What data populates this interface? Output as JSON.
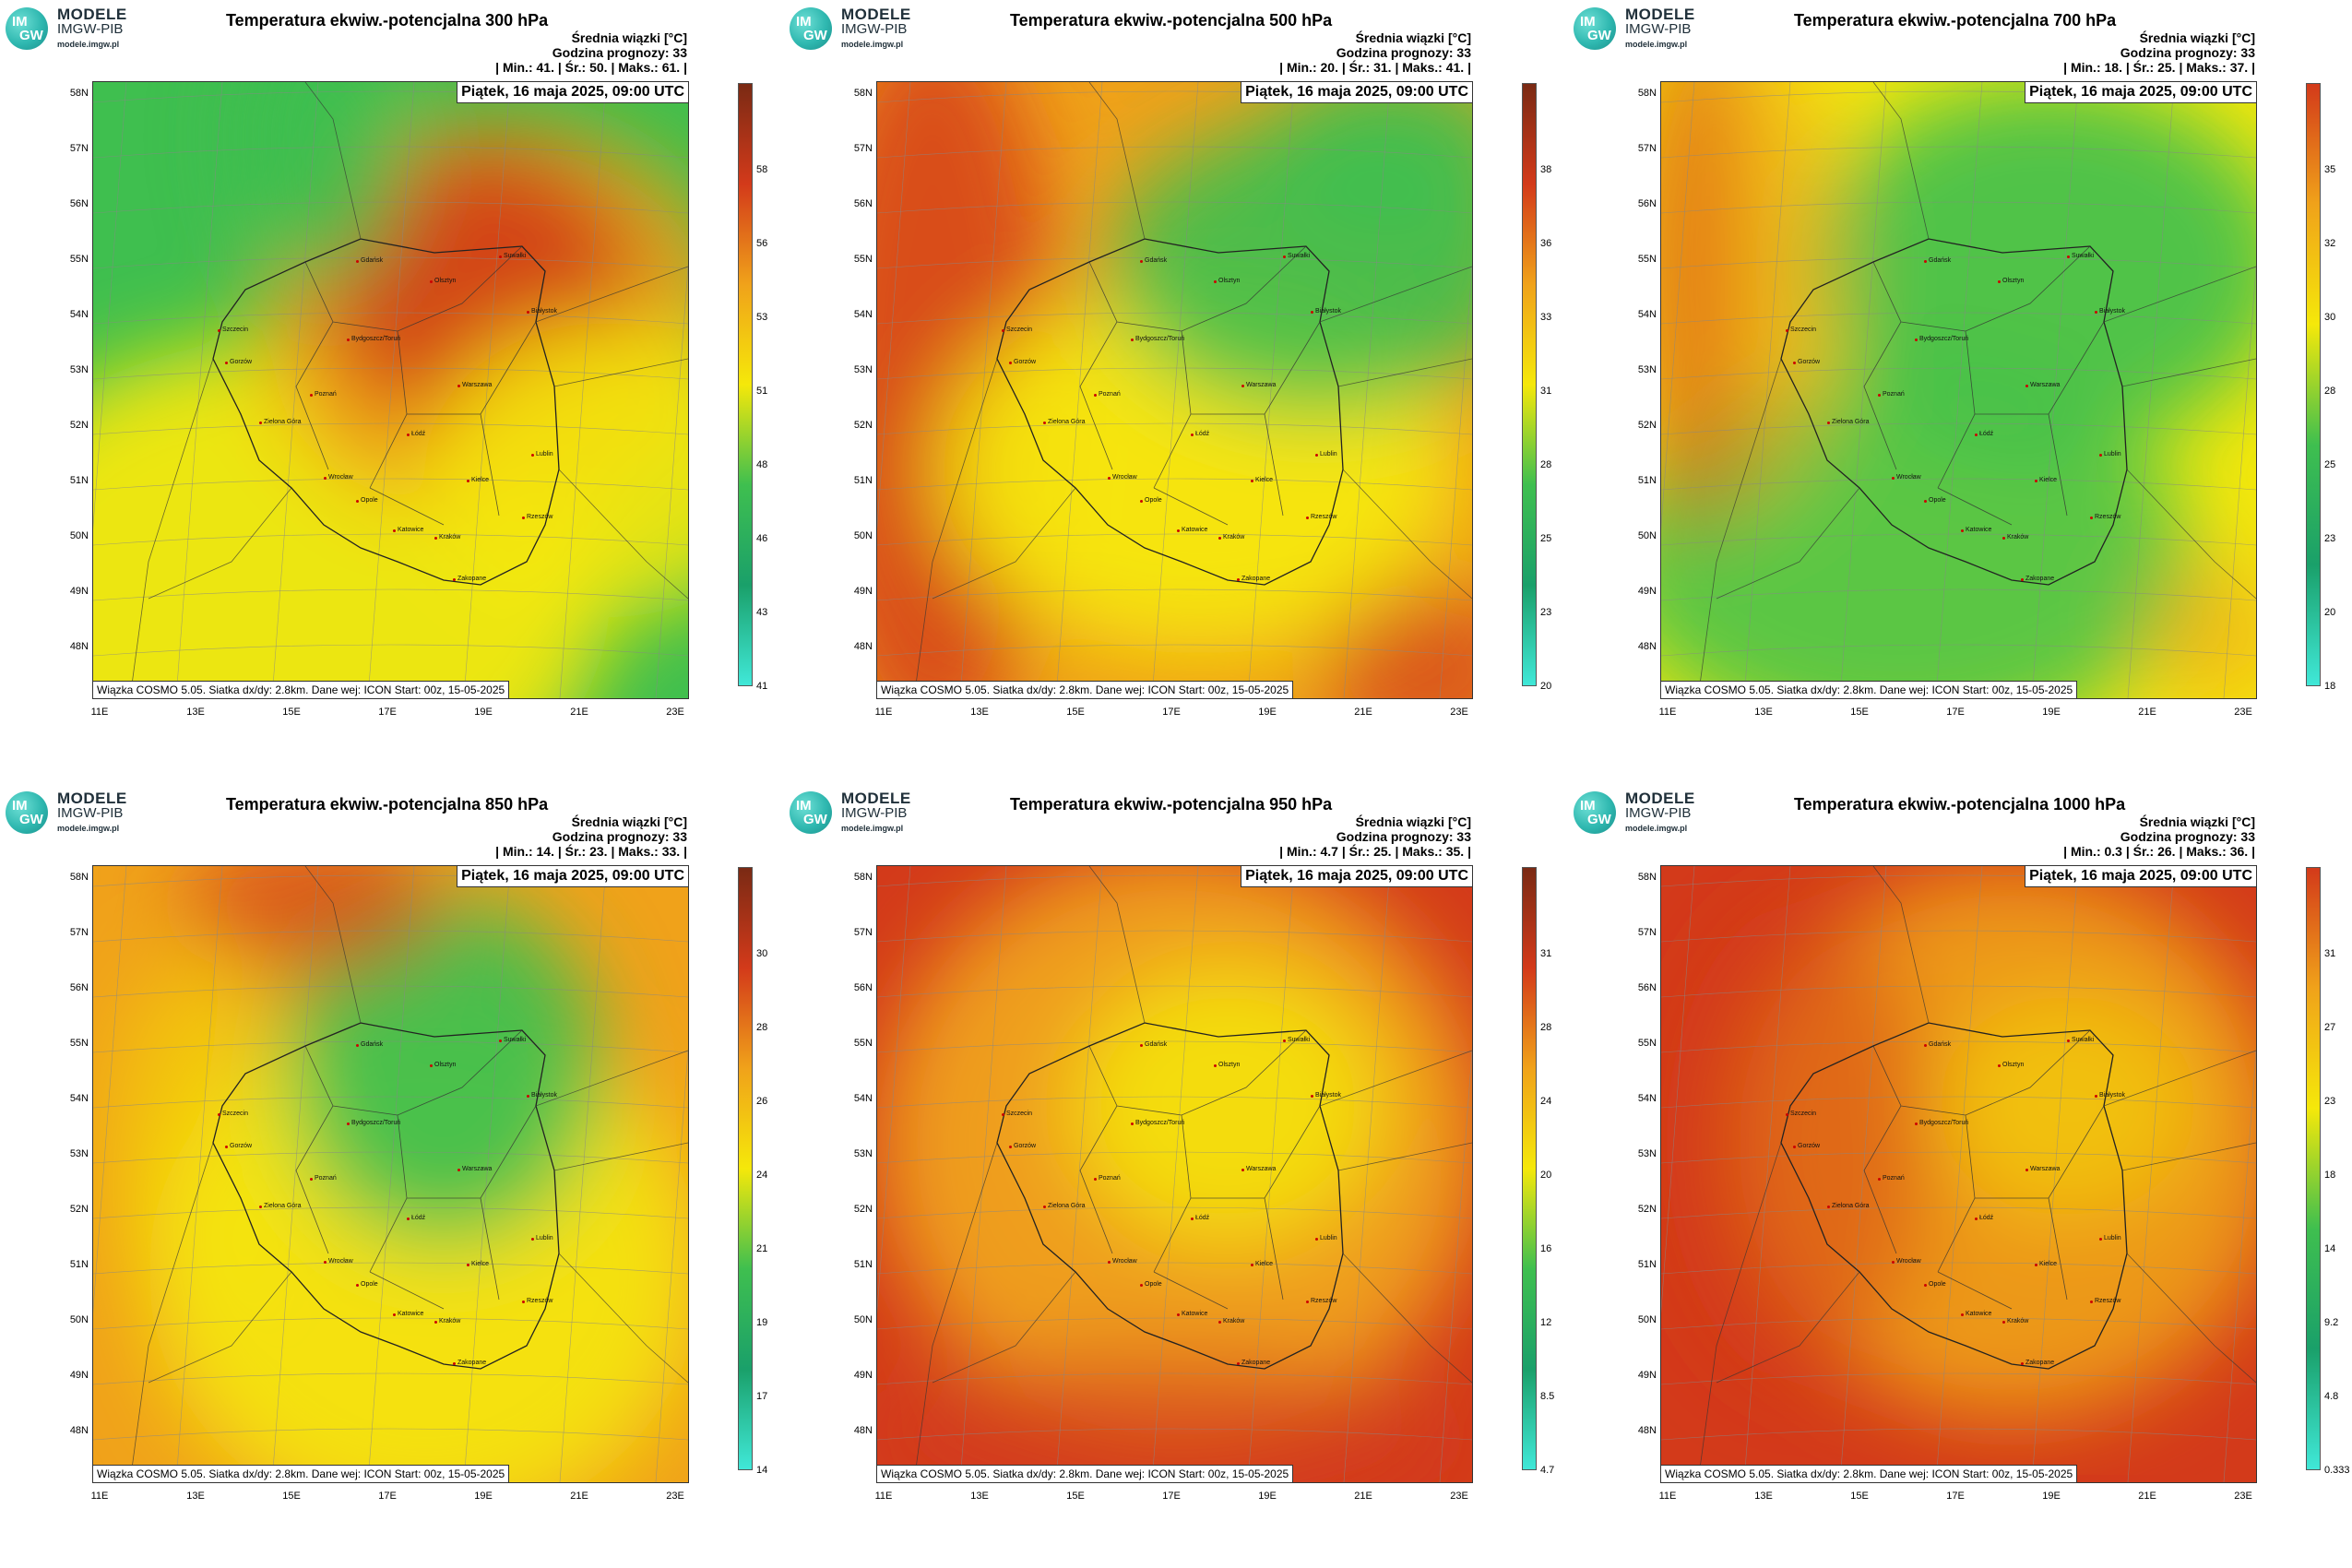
{
  "logo": {
    "mark_top": "IM",
    "mark_bottom": "GW",
    "name": "MODELE",
    "org": "IMGW-PIB",
    "url": "modele.imgw.pl"
  },
  "stats_label_1": "Średnia wiązki [°C]",
  "forecast_hour": "Godzina prognozy: 33",
  "date": "Piątek, 16 maja 2025, 09:00 UTC",
  "footer": "Wiązka COSMO 5.05. Siatka dx/dy: 2.8km. Dane wej: ICON Start: 00z, 15-05-2025",
  "lat_labels": [
    "58N",
    "57N",
    "56N",
    "55N",
    "54N",
    "53N",
    "52N",
    "51N",
    "50N",
    "49N",
    "48N"
  ],
  "lon_labels": [
    "11E",
    "13E",
    "15E",
    "17E",
    "19E",
    "21E",
    "23E"
  ],
  "cities": [
    "Gdańsk",
    "Olsztyn",
    "Suwałki",
    "Białystok",
    "Szczecin",
    "Bydgoszcz/Toruń",
    "Gorzów",
    "Poznań",
    "Warszawa",
    "Zielona Góra",
    "Łódź",
    "Lublin",
    "Wrocław",
    "Kielce",
    "Opole",
    "Katowice",
    "Kraków",
    "Rzeszów",
    "Zakopane"
  ],
  "colors": {
    "green": "#3fbf4f",
    "yellow": "#f5e80a",
    "orange": "#f0a21a",
    "red": "#d33a1a",
    "darkred": "#7a2a14",
    "cyan": "#40e8d8"
  },
  "panels": [
    {
      "title": "Temperatura ekwiw.-potencjalna 300 hPa",
      "stats": "| Min.: 41. | Śr.: 50. | Maks.: 61. |",
      "scale": [
        "58",
        "56",
        "53",
        "51",
        "48",
        "46",
        "43",
        "41"
      ]
    },
    {
      "title": "Temperatura ekwiw.-potencjalna 500 hPa",
      "stats": "| Min.: 20. | Śr.: 31. | Maks.: 41. |",
      "scale": [
        "38",
        "36",
        "33",
        "31",
        "28",
        "25",
        "23",
        "20"
      ]
    },
    {
      "title": "Temperatura ekwiw.-potencjalna 700 hPa",
      "stats": "| Min.: 18. | Śr.: 25. | Maks.: 37. |",
      "scale": [
        "35",
        "32",
        "30",
        "28",
        "25",
        "23",
        "20",
        "18"
      ]
    },
    {
      "title": "Temperatura ekwiw.-potencjalna 850 hPa",
      "stats": "| Min.: 14. | Śr.: 23. | Maks.: 33. |",
      "scale": [
        "30",
        "28",
        "26",
        "24",
        "21",
        "19",
        "17",
        "14"
      ]
    },
    {
      "title": "Temperatura ekwiw.-potencjalna 950 hPa",
      "stats": "| Min.: 4.7 | Śr.: 25. | Maks.: 35. |",
      "scale": [
        "31",
        "28",
        "24",
        "20",
        "16",
        "12",
        "8.5",
        "4.7"
      ]
    },
    {
      "title": "Temperatura ekwiw.-potencjalna 1000 hPa",
      "stats": "| Min.: 0.3 | Śr.: 26. | Maks.: 36. |",
      "scale": [
        "31",
        "27",
        "23",
        "18",
        "14",
        "9.2",
        "4.8",
        "0.333"
      ]
    }
  ]
}
